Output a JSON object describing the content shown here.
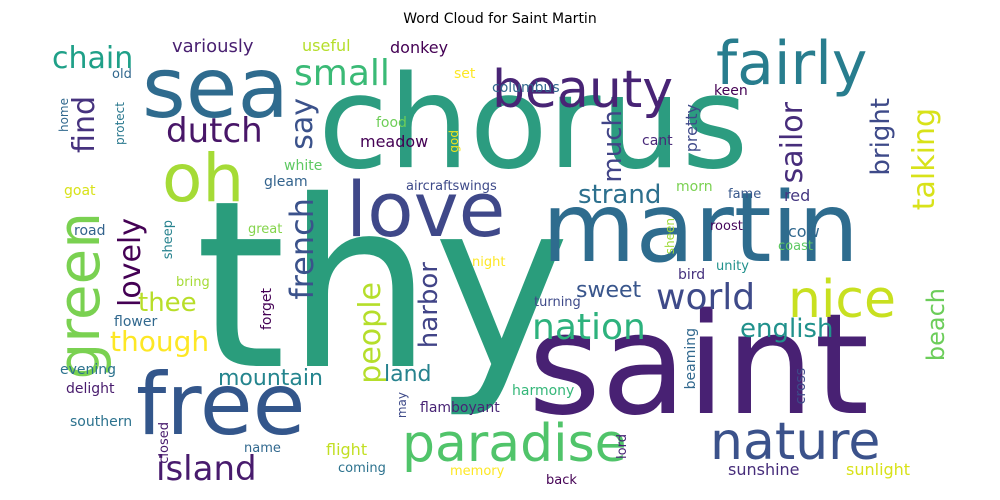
{
  "title": "Word Cloud for Saint Martin",
  "palette": "viridis",
  "words": [
    {
      "text": "thy",
      "color": "#2a9d7c",
      "orientation": "horizontal"
    },
    {
      "text": "chorus",
      "color": "#2c9c80",
      "orientation": "horizontal"
    },
    {
      "text": "saint",
      "color": "#482173",
      "orientation": "horizontal"
    },
    {
      "text": "martin",
      "color": "#2e6c8e",
      "orientation": "horizontal"
    },
    {
      "text": "sea",
      "color": "#2f6b8e",
      "orientation": "horizontal"
    },
    {
      "text": "green",
      "color": "#7ad151",
      "orientation": "vertical"
    },
    {
      "text": "free",
      "color": "#33568b",
      "orientation": "horizontal"
    },
    {
      "text": "love",
      "color": "#3f4889",
      "orientation": "horizontal"
    },
    {
      "text": "oh",
      "color": "#a5db36",
      "orientation": "horizontal"
    },
    {
      "text": "fairly",
      "color": "#287d8e",
      "orientation": "horizontal"
    },
    {
      "text": "beauty",
      "color": "#482475",
      "orientation": "horizontal"
    },
    {
      "text": "paradise",
      "color": "#50c46a",
      "orientation": "horizontal"
    },
    {
      "text": "nature",
      "color": "#3b528b",
      "orientation": "horizontal"
    },
    {
      "text": "nice",
      "color": "#c8e020",
      "orientation": "horizontal"
    },
    {
      "text": "island",
      "color": "#481b6d",
      "orientation": "horizontal"
    },
    {
      "text": "world",
      "color": "#3e4a89",
      "orientation": "horizontal"
    },
    {
      "text": "nation",
      "color": "#2db27d",
      "orientation": "horizontal"
    },
    {
      "text": "french",
      "color": "#3b528b",
      "orientation": "vertical"
    },
    {
      "text": "dutch",
      "color": "#481668",
      "orientation": "horizontal"
    },
    {
      "text": "people",
      "color": "#b5de2b",
      "orientation": "vertical"
    },
    {
      "text": "small",
      "color": "#3aba76",
      "orientation": "horizontal"
    },
    {
      "text": "lovely",
      "color": "#440154",
      "orientation": "vertical"
    },
    {
      "text": "find",
      "color": "#46327e",
      "orientation": "vertical"
    },
    {
      "text": "say",
      "color": "#3b528b",
      "orientation": "vertical"
    },
    {
      "text": "chain",
      "color": "#1fa088",
      "orientation": "horizontal"
    },
    {
      "text": "sailor",
      "color": "#472d7b",
      "orientation": "vertical"
    },
    {
      "text": "talking",
      "color": "#d8e219",
      "orientation": "vertical"
    },
    {
      "text": "bright",
      "color": "#3e4a89",
      "orientation": "vertical"
    },
    {
      "text": "strand",
      "color": "#2d708e",
      "orientation": "horizontal"
    },
    {
      "text": "much",
      "color": "#414487",
      "orientation": "vertical"
    },
    {
      "text": "though",
      "color": "#fde725",
      "orientation": "horizontal"
    },
    {
      "text": "thee",
      "color": "#b8de29",
      "orientation": "horizontal"
    },
    {
      "text": "english",
      "color": "#21918c",
      "orientation": "horizontal"
    },
    {
      "text": "sweet",
      "color": "#39568c",
      "orientation": "horizontal"
    },
    {
      "text": "harbor",
      "color": "#414487",
      "orientation": "vertical"
    },
    {
      "text": "beach",
      "color": "#6ccd5a",
      "orientation": "vertical"
    },
    {
      "text": "mountain",
      "color": "#25858e",
      "orientation": "horizontal"
    },
    {
      "text": "land",
      "color": "#26828e",
      "orientation": "horizontal"
    },
    {
      "text": "variously",
      "color": "#481f70",
      "orientation": "horizontal"
    },
    {
      "text": "useful",
      "color": "#b5de2b",
      "orientation": "horizontal"
    },
    {
      "text": "donkey",
      "color": "#440154",
      "orientation": "horizontal"
    },
    {
      "text": "set",
      "color": "#fde725",
      "orientation": "horizontal"
    },
    {
      "text": "columbus",
      "color": "#31688e",
      "orientation": "horizontal"
    },
    {
      "text": "keen",
      "color": "#440154",
      "orientation": "horizontal"
    },
    {
      "text": "pretty",
      "color": "#3e4989",
      "orientation": "vertical"
    },
    {
      "text": "food",
      "color": "#6ece58",
      "orientation": "horizontal"
    },
    {
      "text": "meadow",
      "color": "#440154",
      "orientation": "horizontal"
    },
    {
      "text": "god",
      "color": "#f1e51d",
      "orientation": "vertical"
    },
    {
      "text": "cant",
      "color": "#482878",
      "orientation": "horizontal"
    },
    {
      "text": "morn",
      "color": "#7ad151",
      "orientation": "horizontal"
    },
    {
      "text": "fame",
      "color": "#38588c",
      "orientation": "horizontal"
    },
    {
      "text": "red",
      "color": "#453781",
      "orientation": "horizontal"
    },
    {
      "text": "white",
      "color": "#5ec962",
      "orientation": "horizontal"
    },
    {
      "text": "gleam",
      "color": "#33638d",
      "orientation": "horizontal"
    },
    {
      "text": "aircraftswings",
      "color": "#3e4a89",
      "orientation": "horizontal"
    },
    {
      "text": "goat",
      "color": "#d8e219",
      "orientation": "horizontal"
    },
    {
      "text": "road",
      "color": "#33638d",
      "orientation": "horizontal"
    },
    {
      "text": "sheep",
      "color": "#26828e",
      "orientation": "vertical"
    },
    {
      "text": "great",
      "color": "#84d44b",
      "orientation": "horizontal"
    },
    {
      "text": "sheen",
      "color": "#a0da39",
      "orientation": "vertical"
    },
    {
      "text": "roost",
      "color": "#46085c",
      "orientation": "horizontal"
    },
    {
      "text": "cow",
      "color": "#31688e",
      "orientation": "horizontal"
    },
    {
      "text": "coast",
      "color": "#5ec962",
      "orientation": "horizontal"
    },
    {
      "text": "bring",
      "color": "#a5db36",
      "orientation": "horizontal"
    },
    {
      "text": "night",
      "color": "#fde725",
      "orientation": "horizontal"
    },
    {
      "text": "bird",
      "color": "#46327e",
      "orientation": "horizontal"
    },
    {
      "text": "unity",
      "color": "#21918c",
      "orientation": "horizontal"
    },
    {
      "text": "turning",
      "color": "#3e4a89",
      "orientation": "horizontal"
    },
    {
      "text": "flower",
      "color": "#31688e",
      "orientation": "horizontal"
    },
    {
      "text": "forget",
      "color": "#440154",
      "orientation": "vertical"
    },
    {
      "text": "beaming",
      "color": "#31688e",
      "orientation": "vertical"
    },
    {
      "text": "evening",
      "color": "#2c728e",
      "orientation": "horizontal"
    },
    {
      "text": "delight",
      "color": "#481b6d",
      "orientation": "horizontal"
    },
    {
      "text": "harmony",
      "color": "#35b779",
      "orientation": "horizontal"
    },
    {
      "text": "may",
      "color": "#3e4a89",
      "orientation": "vertical"
    },
    {
      "text": "cross",
      "color": "#3e4a89",
      "orientation": "vertical"
    },
    {
      "text": "flamboyant",
      "color": "#482475",
      "orientation": "horizontal"
    },
    {
      "text": "southern",
      "color": "#2c728e",
      "orientation": "horizontal"
    },
    {
      "text": "closed",
      "color": "#481b6d",
      "orientation": "vertical"
    },
    {
      "text": "name",
      "color": "#31688e",
      "orientation": "horizontal"
    },
    {
      "text": "flight",
      "color": "#c2df23",
      "orientation": "horizontal"
    },
    {
      "text": "coming",
      "color": "#2c728e",
      "orientation": "horizontal"
    },
    {
      "text": "memory",
      "color": "#fde725",
      "orientation": "horizontal"
    },
    {
      "text": "lord",
      "color": "#482475",
      "orientation": "vertical"
    },
    {
      "text": "back",
      "color": "#440154",
      "orientation": "horizontal"
    },
    {
      "text": "sunshine",
      "color": "#472d7b",
      "orientation": "horizontal"
    },
    {
      "text": "sunlight",
      "color": "#d8e219",
      "orientation": "horizontal"
    },
    {
      "text": "old",
      "color": "#31688e",
      "orientation": "horizontal"
    },
    {
      "text": "home",
      "color": "#31688e",
      "orientation": "vertical"
    },
    {
      "text": "protect",
      "color": "#2a788e",
      "orientation": "vertical"
    }
  ]
}
